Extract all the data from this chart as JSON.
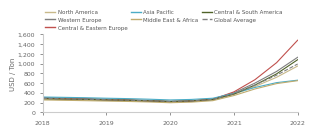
{
  "title": "",
  "ylabel": "USD / Ton",
  "xlim": [
    2018,
    2022
  ],
  "ylim": [
    0,
    1600
  ],
  "yticks": [
    0,
    200,
    400,
    600,
    800,
    1000,
    1200,
    1400,
    1600
  ],
  "ytick_labels": [
    "0",
    "200",
    "400",
    "600",
    "800",
    "1,000",
    "1,200",
    "1,400",
    "1,600"
  ],
  "xticks": [
    2018,
    2019,
    2020,
    2021,
    2022
  ],
  "series": {
    "North America": {
      "x": [
        2018,
        2018.33,
        2018.67,
        2019,
        2019.33,
        2019.67,
        2020,
        2020.33,
        2020.67,
        2021,
        2021.33,
        2021.67,
        2022
      ],
      "y": [
        270,
        260,
        252,
        245,
        238,
        228,
        215,
        228,
        260,
        370,
        530,
        720,
        950
      ],
      "color": "#c8b98a",
      "linestyle": "solid",
      "linewidth": 0.8
    },
    "Western Europe": {
      "x": [
        2018,
        2018.33,
        2018.67,
        2019,
        2019.33,
        2019.67,
        2020,
        2020.33,
        2020.67,
        2021,
        2021.33,
        2021.67,
        2022
      ],
      "y": [
        305,
        295,
        285,
        272,
        262,
        248,
        230,
        242,
        275,
        400,
        600,
        840,
        1130
      ],
      "color": "#7f7f7f",
      "linestyle": "solid",
      "linewidth": 0.8
    },
    "Central & Eastern Europe": {
      "x": [
        2018,
        2018.33,
        2018.67,
        2019,
        2019.33,
        2019.67,
        2020,
        2020.33,
        2020.67,
        2021,
        2021.33,
        2021.67,
        2022
      ],
      "y": [
        290,
        280,
        270,
        257,
        247,
        234,
        218,
        230,
        268,
        420,
        670,
        1020,
        1480
      ],
      "color": "#c0504d",
      "linestyle": "solid",
      "linewidth": 0.8
    },
    "Asia Pacific": {
      "x": [
        2018,
        2018.33,
        2018.67,
        2019,
        2019.33,
        2019.67,
        2020,
        2020.33,
        2020.67,
        2021,
        2021.33,
        2021.67,
        2022
      ],
      "y": [
        315,
        308,
        300,
        290,
        282,
        270,
        255,
        265,
        290,
        390,
        510,
        610,
        660
      ],
      "color": "#4bacc6",
      "linestyle": "solid",
      "linewidth": 0.8
    },
    "Middle East & Africa": {
      "x": [
        2018,
        2018.33,
        2018.67,
        2019,
        2019.33,
        2019.67,
        2020,
        2020.33,
        2020.67,
        2021,
        2021.33,
        2021.67,
        2022
      ],
      "y": [
        255,
        248,
        240,
        232,
        224,
        213,
        198,
        210,
        240,
        345,
        480,
        590,
        650
      ],
      "color": "#bfab6e",
      "linestyle": "solid",
      "linewidth": 0.8
    },
    "Central & South America": {
      "x": [
        2018,
        2018.33,
        2018.67,
        2019,
        2019.33,
        2019.67,
        2020,
        2020.33,
        2020.67,
        2021,
        2021.33,
        2021.67,
        2022
      ],
      "y": [
        282,
        274,
        266,
        257,
        248,
        237,
        222,
        234,
        264,
        375,
        560,
        790,
        1080
      ],
      "color": "#4f6228",
      "linestyle": "solid",
      "linewidth": 0.8
    },
    "Global Average": {
      "x": [
        2018,
        2018.33,
        2018.67,
        2019,
        2019.33,
        2019.67,
        2020,
        2020.33,
        2020.67,
        2021,
        2021.33,
        2021.67,
        2022
      ],
      "y": [
        286,
        278,
        269,
        259,
        250,
        238,
        223,
        235,
        266,
        385,
        560,
        763,
        992
      ],
      "color": "#808080",
      "linestyle": "dashed",
      "linewidth": 0.8
    }
  },
  "legend_order": [
    "North America",
    "Western Europe",
    "Central & Eastern Europe",
    "Asia Pacific",
    "Middle East & Africa",
    "Central & South America",
    "Global Average"
  ],
  "bg_color": "#ffffff",
  "tick_fontsize": 4.5,
  "legend_fontsize": 4.0,
  "ylabel_fontsize": 5.0
}
